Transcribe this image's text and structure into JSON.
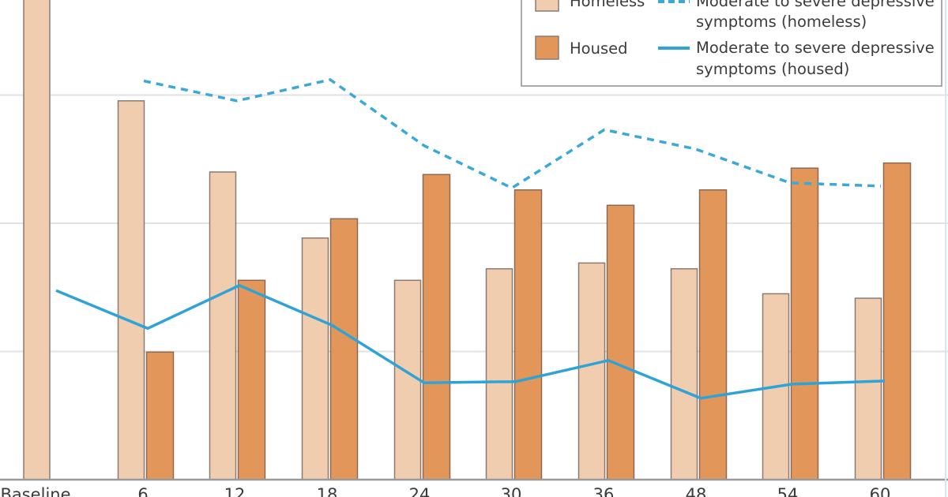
{
  "chart_data": {
    "type": "bar",
    "title": "",
    "xlabel": "",
    "ylabel": "",
    "y_tick_labels_visible": false,
    "ylim": [
      0,
      77
    ],
    "gridlines": [
      20,
      40,
      60
    ],
    "grid": true,
    "categories": [
      "Baseline",
      "6",
      "12",
      "18",
      "24",
      "30",
      "36",
      "48",
      "54",
      "60"
    ],
    "series": [
      {
        "name": "Homeless",
        "kind": "bar",
        "color": "#f1cdb0",
        "values": [
          76,
          59.1,
          48.0,
          37.7,
          31.1,
          32.9,
          33.8,
          32.9,
          29.0,
          28.3
        ]
      },
      {
        "name": "Housed",
        "kind": "bar",
        "color": "#e3965a",
        "values": [
          null,
          19.9,
          31.1,
          40.7,
          47.6,
          45.2,
          42.8,
          45.2,
          48.6,
          49.4
        ]
      },
      {
        "name": "Moderate to severe depressive symptoms (homeless)",
        "kind": "line",
        "style": "dashed",
        "color": "#3aa9d8",
        "values": [
          null,
          62.2,
          59.1,
          62.4,
          52.1,
          45.5,
          54.6,
          51.6,
          46.3,
          45.8
        ]
      },
      {
        "name": "Moderate to severe depressive symptoms (housed)",
        "kind": "line",
        "style": "solid",
        "color": "#2fa3d6",
        "values": [
          29.5,
          23.6,
          30.3,
          24.1,
          15.1,
          15.3,
          18.6,
          12.7,
          14.9,
          15.4
        ]
      }
    ],
    "legend": {
      "placement": "top-right",
      "entries": [
        {
          "label": "Homeless",
          "type": "swatch",
          "series": 0
        },
        {
          "label": "Moderate to severe depressive symptoms (homeless)",
          "lines": [
            "Moderate to severe depressive",
            "symptoms (homeless)"
          ],
          "type": "dashed-line",
          "series": 2
        },
        {
          "label": "Housed",
          "type": "swatch",
          "series": 1
        },
        {
          "label": "Moderate to severe depressive symptoms (housed)",
          "lines": [
            "Moderate to severe depressive",
            "symptoms (housed)"
          ],
          "type": "solid-line",
          "series": 3
        }
      ]
    }
  },
  "colors": {
    "homeless_bar": "#f1cdb0",
    "housed_bar": "#e3965a",
    "bar_outline": "#8a7a72",
    "line": "#2fa3d6",
    "grid": "#e2e2e2",
    "axis": "#9a9a9a"
  }
}
